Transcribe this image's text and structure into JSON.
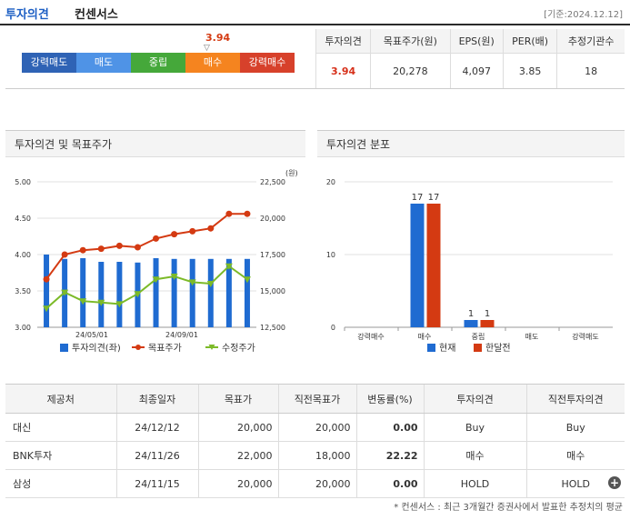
{
  "header": {
    "title_a": "투자의견",
    "title_b": "컨센서스",
    "date": "[기준:2024.12.12]"
  },
  "opinion_scale": {
    "marker_value": "3.94",
    "marker_arrow": "▽",
    "items": [
      {
        "label": "강력매도",
        "color": "#2f63b5"
      },
      {
        "label": "매도",
        "color": "#4f93e6"
      },
      {
        "label": "중립",
        "color": "#45a83a"
      },
      {
        "label": "매수",
        "color": "#f5841f"
      },
      {
        "label": "강력매수",
        "color": "#d7412b"
      }
    ]
  },
  "summary": {
    "headers": [
      "투자의견",
      "목표주가(원)",
      "EPS(원)",
      "PER(배)",
      "추정기관수"
    ],
    "values": [
      "3.94",
      "20,278",
      "4,097",
      "3.85",
      "18"
    ]
  },
  "chart_titles": {
    "left": "투자의견 및 목표주가",
    "right": "투자의견 분포"
  },
  "chart_data": [
    {
      "type": "bar+line",
      "title": "투자의견 및 목표주가",
      "unit_right": "(원)",
      "y_left_ticks": [
        "5.00",
        "4.50",
        "4.00",
        "3.50",
        "3.00"
      ],
      "y_right_ticks": [
        "22,500",
        "20,000",
        "17,500",
        "15,000",
        "12,500"
      ],
      "x_ticks": [
        "24/05/01",
        "24/09/01"
      ],
      "ylim_left": [
        3.0,
        5.0
      ],
      "ylim_right": [
        12500,
        22500
      ],
      "opinion": [
        4.0,
        3.94,
        3.95,
        3.9,
        3.9,
        3.89,
        3.95,
        3.94,
        3.94,
        3.94,
        3.94,
        3.94
      ],
      "target_price": [
        15800,
        17500,
        17800,
        17900,
        18100,
        18000,
        18600,
        18900,
        19100,
        19300,
        20300,
        20300
      ],
      "stock_price": [
        13800,
        14900,
        14300,
        14200,
        14100,
        14800,
        15800,
        16000,
        15600,
        15500,
        16700,
        15800
      ],
      "legend": [
        "투자의견(좌)",
        "목표주가",
        "수정주가"
      ],
      "colors": {
        "opinion": "#1f6bd1",
        "target": "#d43a12",
        "stock": "#7cba28"
      }
    },
    {
      "type": "bar",
      "title": "투자의견 분포",
      "categories": [
        "강력매수",
        "매수",
        "중립",
        "매도",
        "강력매도"
      ],
      "series": [
        {
          "name": "현재",
          "values": [
            0,
            17,
            1,
            0,
            0
          ],
          "color": "#1f6bd1"
        },
        {
          "name": "한달전",
          "values": [
            0,
            17,
            1,
            0,
            0
          ],
          "color": "#d43a12"
        }
      ],
      "y_ticks": [
        "20",
        "10",
        "0"
      ],
      "ylim": [
        0,
        20
      ]
    }
  ],
  "provider_table": {
    "headers": [
      "제공처",
      "최종일자",
      "목표가",
      "직전목표가",
      "변동률(%)",
      "투자의견",
      "직전투자의견"
    ],
    "rows": [
      [
        "대신",
        "24/12/12",
        "20,000",
        "20,000",
        "0.00",
        "Buy",
        "Buy"
      ],
      [
        "BNK투자",
        "24/11/26",
        "22,000",
        "18,000",
        "22.22",
        "매수",
        "매수"
      ],
      [
        "삼성",
        "24/11/15",
        "20,000",
        "20,000",
        "0.00",
        "HOLD",
        "HOLD"
      ]
    ]
  },
  "more_icon": "plus-circle-icon",
  "note": "* 컨센서스 : 최근 3개월간 증권사에서 발표한 추정치의 평균"
}
